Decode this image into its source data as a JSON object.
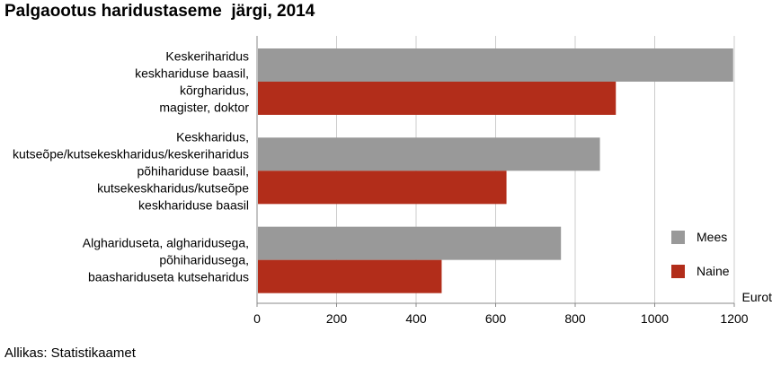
{
  "title": "Palgaootus haridustaseme  järgi, 2014",
  "source": "Allikas: Statistikaamet",
  "chart_data": {
    "type": "bar",
    "orientation": "horizontal",
    "categories": [
      [
        "Keskeriharidus",
        "keskhariduse baasil,",
        "kõrgharidus,",
        "magister, doktor"
      ],
      [
        "Keskharidus,",
        "kutseõpe/kutsekeskharidus/keskeriharidus",
        "põhihariduse baasil,",
        "kutsekeskharidus/kutseõpe",
        "keskhariduse baasil"
      ],
      [
        "Alghariduseta, algharidusega,",
        "põhiharidusega,",
        "baashariduseta kutseharidus"
      ]
    ],
    "series": [
      {
        "name": "Mees",
        "color": "#999999",
        "values": [
          1195,
          860,
          762
        ]
      },
      {
        "name": "Naine",
        "color": "#b22d1a",
        "values": [
          900,
          625,
          462
        ]
      }
    ],
    "xlim": [
      0,
      1200
    ],
    "xticks": [
      0,
      200,
      400,
      600,
      800,
      1000,
      1200
    ],
    "xlabel": "Eurot",
    "grid": true,
    "legend": "right"
  }
}
